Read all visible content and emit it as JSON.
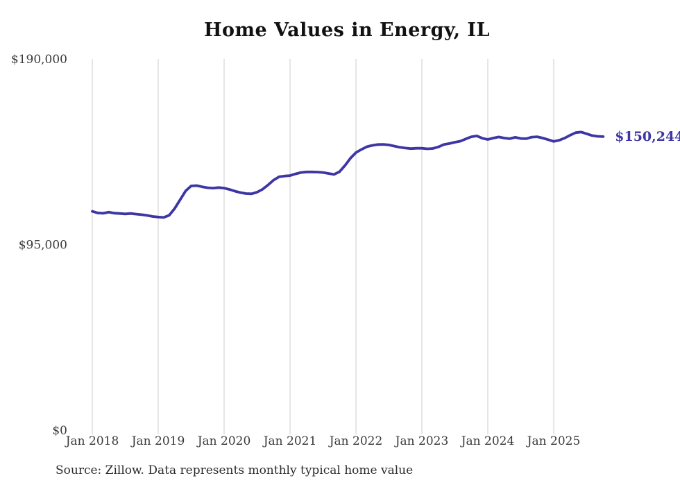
{
  "chart": {
    "title": "Home Values in Energy, IL",
    "end_label": "$150,244",
    "source": "Source: Zillow. Data represents monthly typical home value",
    "line_color": "#3d36a4",
    "grid_color": "#cccccc",
    "axis_label_color": "#3a3a3a"
  },
  "chart_data": {
    "type": "line",
    "title": "Home Values in Energy, IL",
    "ylabel": "",
    "xlabel": "",
    "ylim": [
      0,
      190000
    ],
    "grid": "vertical-only",
    "legend": "none",
    "annotation": "$150,244",
    "source": "Source: Zillow. Data represents monthly typical home value",
    "y_ticks": [
      {
        "label": "$0",
        "value": 0
      },
      {
        "label": "$95,000",
        "value": 95000
      },
      {
        "label": "$190,000",
        "value": 190000
      }
    ],
    "x_ticks": [
      {
        "label": "Jan 2018",
        "index": 0
      },
      {
        "label": "Jan 2019",
        "index": 12
      },
      {
        "label": "Jan 2020",
        "index": 24
      },
      {
        "label": "Jan 2021",
        "index": 36
      },
      {
        "label": "Jan 2022",
        "index": 48
      },
      {
        "label": "Jan 2023",
        "index": 60
      },
      {
        "label": "Jan 2024",
        "index": 72
      },
      {
        "label": "Jan 2025",
        "index": 84
      }
    ],
    "x": [
      "2018-01",
      "2018-02",
      "2018-03",
      "2018-04",
      "2018-05",
      "2018-06",
      "2018-07",
      "2018-08",
      "2018-09",
      "2018-10",
      "2018-11",
      "2018-12",
      "2019-01",
      "2019-02",
      "2019-03",
      "2019-04",
      "2019-05",
      "2019-06",
      "2019-07",
      "2019-08",
      "2019-09",
      "2019-10",
      "2019-11",
      "2019-12",
      "2020-01",
      "2020-02",
      "2020-03",
      "2020-04",
      "2020-05",
      "2020-06",
      "2020-07",
      "2020-08",
      "2020-09",
      "2020-10",
      "2020-11",
      "2020-12",
      "2021-01",
      "2021-02",
      "2021-03",
      "2021-04",
      "2021-05",
      "2021-06",
      "2021-07",
      "2021-08",
      "2021-09",
      "2021-10",
      "2021-11",
      "2021-12",
      "2022-01",
      "2022-02",
      "2022-03",
      "2022-04",
      "2022-05",
      "2022-06",
      "2022-07",
      "2022-08",
      "2022-09",
      "2022-10",
      "2022-11",
      "2022-12",
      "2023-01",
      "2023-02",
      "2023-03",
      "2023-04",
      "2023-05",
      "2023-06",
      "2023-07",
      "2023-08",
      "2023-09",
      "2023-10",
      "2023-11",
      "2023-12",
      "2024-01",
      "2024-02",
      "2024-03",
      "2024-04",
      "2024-05",
      "2024-06",
      "2024-07",
      "2024-08",
      "2024-09",
      "2024-10",
      "2024-11",
      "2024-12",
      "2025-01",
      "2025-02",
      "2025-03",
      "2025-04",
      "2025-05",
      "2025-06",
      "2025-07",
      "2025-08",
      "2025-09",
      "2025-10"
    ],
    "values": [
      112000,
      111200,
      111000,
      111600,
      111100,
      110900,
      110700,
      110900,
      110600,
      110300,
      109900,
      109400,
      109100,
      108900,
      110000,
      113500,
      118000,
      122500,
      125000,
      125200,
      124600,
      124100,
      123900,
      124200,
      123900,
      123200,
      122300,
      121600,
      121100,
      121000,
      121800,
      123300,
      125500,
      128000,
      129700,
      130100,
      130300,
      131200,
      131900,
      132200,
      132200,
      132100,
      131900,
      131400,
      130900,
      132300,
      135500,
      139200,
      142100,
      143700,
      145100,
      145800,
      146200,
      146300,
      146000,
      145400,
      144800,
      144400,
      144100,
      144300,
      144300,
      144000,
      144200,
      145000,
      146200,
      146700,
      147400,
      147900,
      149100,
      150200,
      150600,
      149400,
      148800,
      149500,
      150100,
      149500,
      149200,
      149900,
      149300,
      149200,
      150000,
      150200,
      149500,
      148700,
      147800,
      148400,
      149500,
      151000,
      152300,
      152600,
      151700,
      150800,
      150400,
      150244
    ]
  }
}
